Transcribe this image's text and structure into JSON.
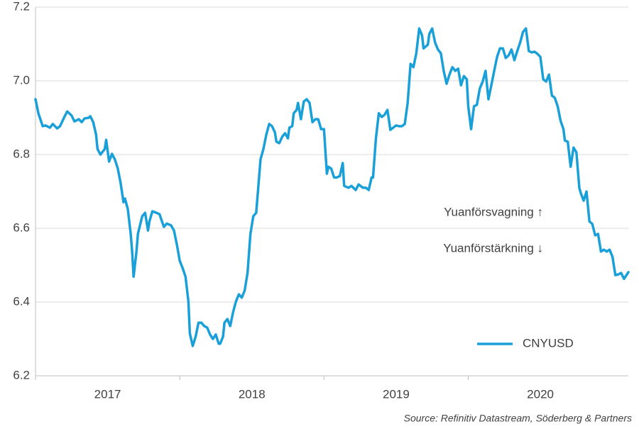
{
  "chart_data": {
    "type": "line",
    "x": [
      2017.0,
      2017.02,
      2017.05,
      2017.07,
      2017.1,
      2017.12,
      2017.15,
      2017.17,
      2017.2,
      2017.22,
      2017.25,
      2017.27,
      2017.3,
      2017.32,
      2017.34,
      2017.37,
      2017.38,
      2017.4,
      2017.42,
      2017.43,
      2017.45,
      2017.48,
      2017.49,
      2017.51,
      2017.53,
      2017.55,
      2017.57,
      2017.59,
      2017.61,
      2017.62,
      2017.64,
      2017.66,
      2017.67,
      2017.68,
      2017.7,
      2017.71,
      2017.74,
      2017.76,
      2017.78,
      2017.79,
      2017.81,
      2017.84,
      2017.86,
      2017.89,
      2017.91,
      2017.94,
      2017.96,
      2017.98,
      2018.0,
      2018.02,
      2018.04,
      2018.06,
      2018.07,
      2018.09,
      2018.11,
      2018.13,
      2018.15,
      2018.17,
      2018.19,
      2018.21,
      2018.23,
      2018.25,
      2018.27,
      2018.28,
      2018.3,
      2018.31,
      2018.33,
      2018.35,
      2018.37,
      2018.39,
      2018.41,
      2018.43,
      2018.45,
      2018.47,
      2018.49,
      2018.51,
      2018.53,
      2018.54,
      2018.56,
      2018.58,
      2018.6,
      2018.62,
      2018.64,
      2018.66,
      2018.67,
      2018.69,
      2018.71,
      2018.73,
      2018.75,
      2018.76,
      2018.78,
      2018.79,
      2018.81,
      2018.82,
      2018.84,
      2018.86,
      2018.88,
      2018.9,
      2018.92,
      2018.94,
      2018.96,
      2018.98,
      2019.0,
      2019.02,
      2019.03,
      2019.05,
      2019.07,
      2019.09,
      2019.11,
      2019.13,
      2019.14,
      2019.17,
      2019.19,
      2019.22,
      2019.24,
      2019.27,
      2019.29,
      2019.31,
      2019.33,
      2019.34,
      2019.36,
      2019.38,
      2019.4,
      2019.42,
      2019.44,
      2019.46,
      2019.48,
      2019.5,
      2019.52,
      2019.54,
      2019.56,
      2019.58,
      2019.6,
      2019.62,
      2019.64,
      2019.66,
      2019.68,
      2019.69,
      2019.72,
      2019.73,
      2019.75,
      2019.77,
      2019.79,
      2019.81,
      2019.83,
      2019.85,
      2019.87,
      2019.89,
      2019.91,
      2019.93,
      2019.95,
      2019.97,
      2019.99,
      2020.0,
      2020.02,
      2020.04,
      2020.06,
      2020.08,
      2020.1,
      2020.12,
      2020.14,
      2020.16,
      2020.18,
      2020.2,
      2020.22,
      2020.24,
      2020.26,
      2020.28,
      2020.3,
      2020.32,
      2020.34,
      2020.36,
      2020.38,
      2020.4,
      2020.42,
      2020.44,
      2020.46,
      2020.48,
      2020.5,
      2020.52,
      2020.54,
      2020.56,
      2020.58,
      2020.6,
      2020.62,
      2020.64,
      2020.66,
      2020.67,
      2020.69,
      2020.71,
      2020.73,
      2020.75,
      2020.77,
      2020.78,
      2020.8,
      2020.82,
      2020.84,
      2020.86,
      2020.88,
      2020.9,
      2020.92,
      2020.94,
      2020.96,
      2020.98,
      2021.0,
      2021.02,
      2021.04,
      2021.06,
      2021.08,
      2021.1,
      2021.11
    ],
    "series": [
      {
        "name": "CNYUSD",
        "color": "#1aa0d8",
        "values": [
          6.95,
          6.912,
          6.877,
          6.879,
          6.873,
          6.883,
          6.871,
          6.877,
          6.902,
          6.917,
          6.906,
          6.89,
          6.896,
          6.888,
          6.898,
          6.9,
          6.904,
          6.888,
          6.854,
          6.815,
          6.8,
          6.815,
          6.84,
          6.781,
          6.802,
          6.787,
          6.763,
          6.723,
          6.671,
          6.681,
          6.652,
          6.585,
          6.537,
          6.469,
          6.537,
          6.585,
          6.633,
          6.642,
          6.594,
          6.619,
          6.646,
          6.642,
          6.638,
          6.604,
          6.613,
          6.608,
          6.594,
          6.556,
          6.512,
          6.492,
          6.469,
          6.402,
          6.315,
          6.281,
          6.306,
          6.344,
          6.344,
          6.335,
          6.331,
          6.312,
          6.3,
          6.312,
          6.287,
          6.287,
          6.306,
          6.344,
          6.354,
          6.335,
          6.373,
          6.402,
          6.421,
          6.412,
          6.431,
          6.479,
          6.585,
          6.633,
          6.642,
          6.69,
          6.787,
          6.815,
          6.854,
          6.883,
          6.877,
          6.86,
          6.835,
          6.831,
          6.848,
          6.858,
          6.844,
          6.873,
          6.877,
          6.912,
          6.921,
          6.94,
          6.896,
          6.944,
          6.95,
          6.94,
          6.888,
          6.896,
          6.896,
          6.869,
          6.869,
          6.748,
          6.767,
          6.762,
          6.738,
          6.738,
          6.742,
          6.777,
          6.715,
          6.71,
          6.715,
          6.704,
          6.719,
          6.71,
          6.71,
          6.704,
          6.738,
          6.738,
          6.844,
          6.912,
          6.902,
          6.908,
          6.921,
          6.867,
          6.873,
          6.879,
          6.877,
          6.877,
          6.883,
          6.94,
          7.046,
          7.037,
          7.075,
          7.142,
          7.123,
          7.088,
          7.098,
          7.127,
          7.142,
          7.104,
          7.085,
          7.075,
          7.027,
          6.992,
          7.017,
          7.037,
          7.027,
          7.033,
          6.988,
          7.013,
          7.004,
          6.931,
          6.869,
          6.931,
          6.935,
          6.979,
          6.998,
          7.027,
          6.95,
          6.988,
          7.027,
          7.065,
          7.088,
          7.088,
          7.062,
          7.069,
          7.085,
          7.056,
          7.081,
          7.104,
          7.133,
          7.142,
          7.081,
          7.077,
          7.079,
          7.073,
          7.065,
          7.004,
          6.998,
          7.017,
          6.96,
          6.954,
          6.931,
          6.892,
          6.869,
          6.838,
          6.835,
          6.767,
          6.819,
          6.806,
          6.71,
          6.696,
          6.675,
          6.7,
          6.619,
          6.612,
          6.581,
          6.585,
          6.537,
          6.542,
          6.537,
          6.542,
          6.523,
          6.473,
          6.475,
          6.479,
          6.463,
          6.475,
          6.481
        ]
      }
    ],
    "xlim": [
      2017,
      2021.11
    ],
    "xticks": [
      {
        "value": 2017,
        "label": "2017"
      },
      {
        "value": 2018,
        "label": "2018"
      },
      {
        "value": 2019,
        "label": "2019"
      },
      {
        "value": 2020,
        "label": "2020"
      }
    ],
    "ylim": [
      6.2,
      7.2
    ],
    "yticks": [
      6.2,
      6.4,
      6.6,
      6.8,
      {
        "value": 7,
        "label": "7.0"
      },
      7.2
    ],
    "grid": true,
    "legend": "lower right",
    "annotations": [
      "Yuanförsvagning ↑",
      "Yuanförstärkning ↓"
    ],
    "source": "Source: Refinitiv Datastream, Söderberg & Partners"
  }
}
